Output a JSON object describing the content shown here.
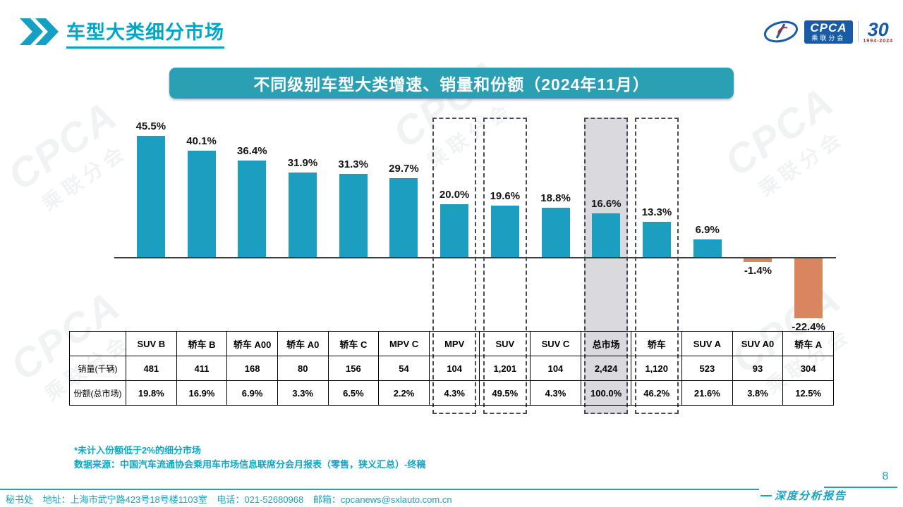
{
  "page": {
    "title": "车型大类细分市场",
    "page_number": "8",
    "report_type": "深度分析报告"
  },
  "logos": {
    "cpca_word": "CPCA",
    "cpca_sub": "乘联分会",
    "anniversary_number": "30",
    "anniversary_years": "1994-2024"
  },
  "banner": {
    "title": "不同级别车型大类增速、销量和份额（2024年11月）"
  },
  "watermark": {
    "line1": "CPCA",
    "line2": "乘联分会"
  },
  "chart_data": {
    "type": "bar",
    "title": "不同级别车型大类增速、销量和份额（2024年11月）",
    "categories": [
      "SUV B",
      "轿车 B",
      "轿车 A00",
      "轿车 A0",
      "轿车 C",
      "MPV C",
      "MPV",
      "SUV",
      "SUV C",
      "总市场",
      "轿车",
      "SUV A",
      "SUV A0",
      "轿车 A"
    ],
    "series": [
      {
        "name": "增速",
        "unit": "%",
        "values": [
          45.5,
          40.1,
          36.4,
          31.9,
          31.3,
          29.7,
          20.0,
          19.6,
          18.8,
          16.6,
          13.3,
          6.9,
          -1.4,
          -22.4
        ]
      },
      {
        "name": "销量(千辆)",
        "values": [
          481,
          411,
          168,
          80,
          156,
          54,
          104,
          1201,
          104,
          2424,
          1120,
          523,
          93,
          304
        ]
      },
      {
        "name": "份额(总市场)",
        "unit": "%",
        "values": [
          19.8,
          16.9,
          6.9,
          3.3,
          6.5,
          2.2,
          4.3,
          49.5,
          4.3,
          100.0,
          46.2,
          21.6,
          3.8,
          12.5
        ]
      }
    ],
    "growth_display": [
      "45.5%",
      "40.1%",
      "36.4%",
      "31.9%",
      "31.3%",
      "29.7%",
      "20.0%",
      "19.6%",
      "18.8%",
      "16.6%",
      "13.3%",
      "6.9%",
      "-1.4%",
      "-22.4%"
    ],
    "highlight_columns": [
      "MPV",
      "SUV",
      "总市场",
      "轿车"
    ],
    "filled_column": "总市场",
    "bar_color_positive": "#1B9EC0",
    "bar_color_negative": "#D9855F",
    "highlight_fill": "#D9D9DE",
    "ylim": [
      -25,
      50
    ],
    "grid": false,
    "legend": "none"
  },
  "table": {
    "corner_label": "",
    "row_sales_label": "销量(千辆)",
    "row_share_label": "份额(总市场)",
    "headers": [
      "SUV B",
      "轿车 B",
      "轿车 A00",
      "轿车 A0",
      "轿车 C",
      "MPV C",
      "MPV",
      "SUV",
      "SUV C",
      "总市场",
      "轿车",
      "SUV A",
      "SUV A0",
      "轿车 A"
    ],
    "sales_display": [
      "481",
      "411",
      "168",
      "80",
      "156",
      "54",
      "104",
      "1,201",
      "104",
      "2,424",
      "1,120",
      "523",
      "93",
      "304"
    ],
    "share_display": [
      "19.8%",
      "16.9%",
      "6.9%",
      "3.3%",
      "6.5%",
      "2.2%",
      "4.3%",
      "49.5%",
      "4.3%",
      "100.0%",
      "46.2%",
      "21.6%",
      "3.8%",
      "12.5%"
    ]
  },
  "footnotes": {
    "line1": "*未计入份额低于2%的细分市场",
    "line2": "数据来源：中国汽车流通协会乘用车市场信息联席分会月报表（零售，狭义汇总）-终稿"
  },
  "footer": {
    "dept": "秘书处",
    "address": "地址：上海市武宁路423号18号楼1103室",
    "phone": "电话：021-52680968",
    "email": "邮箱：cpcanews@sxlauto.com.cn"
  }
}
